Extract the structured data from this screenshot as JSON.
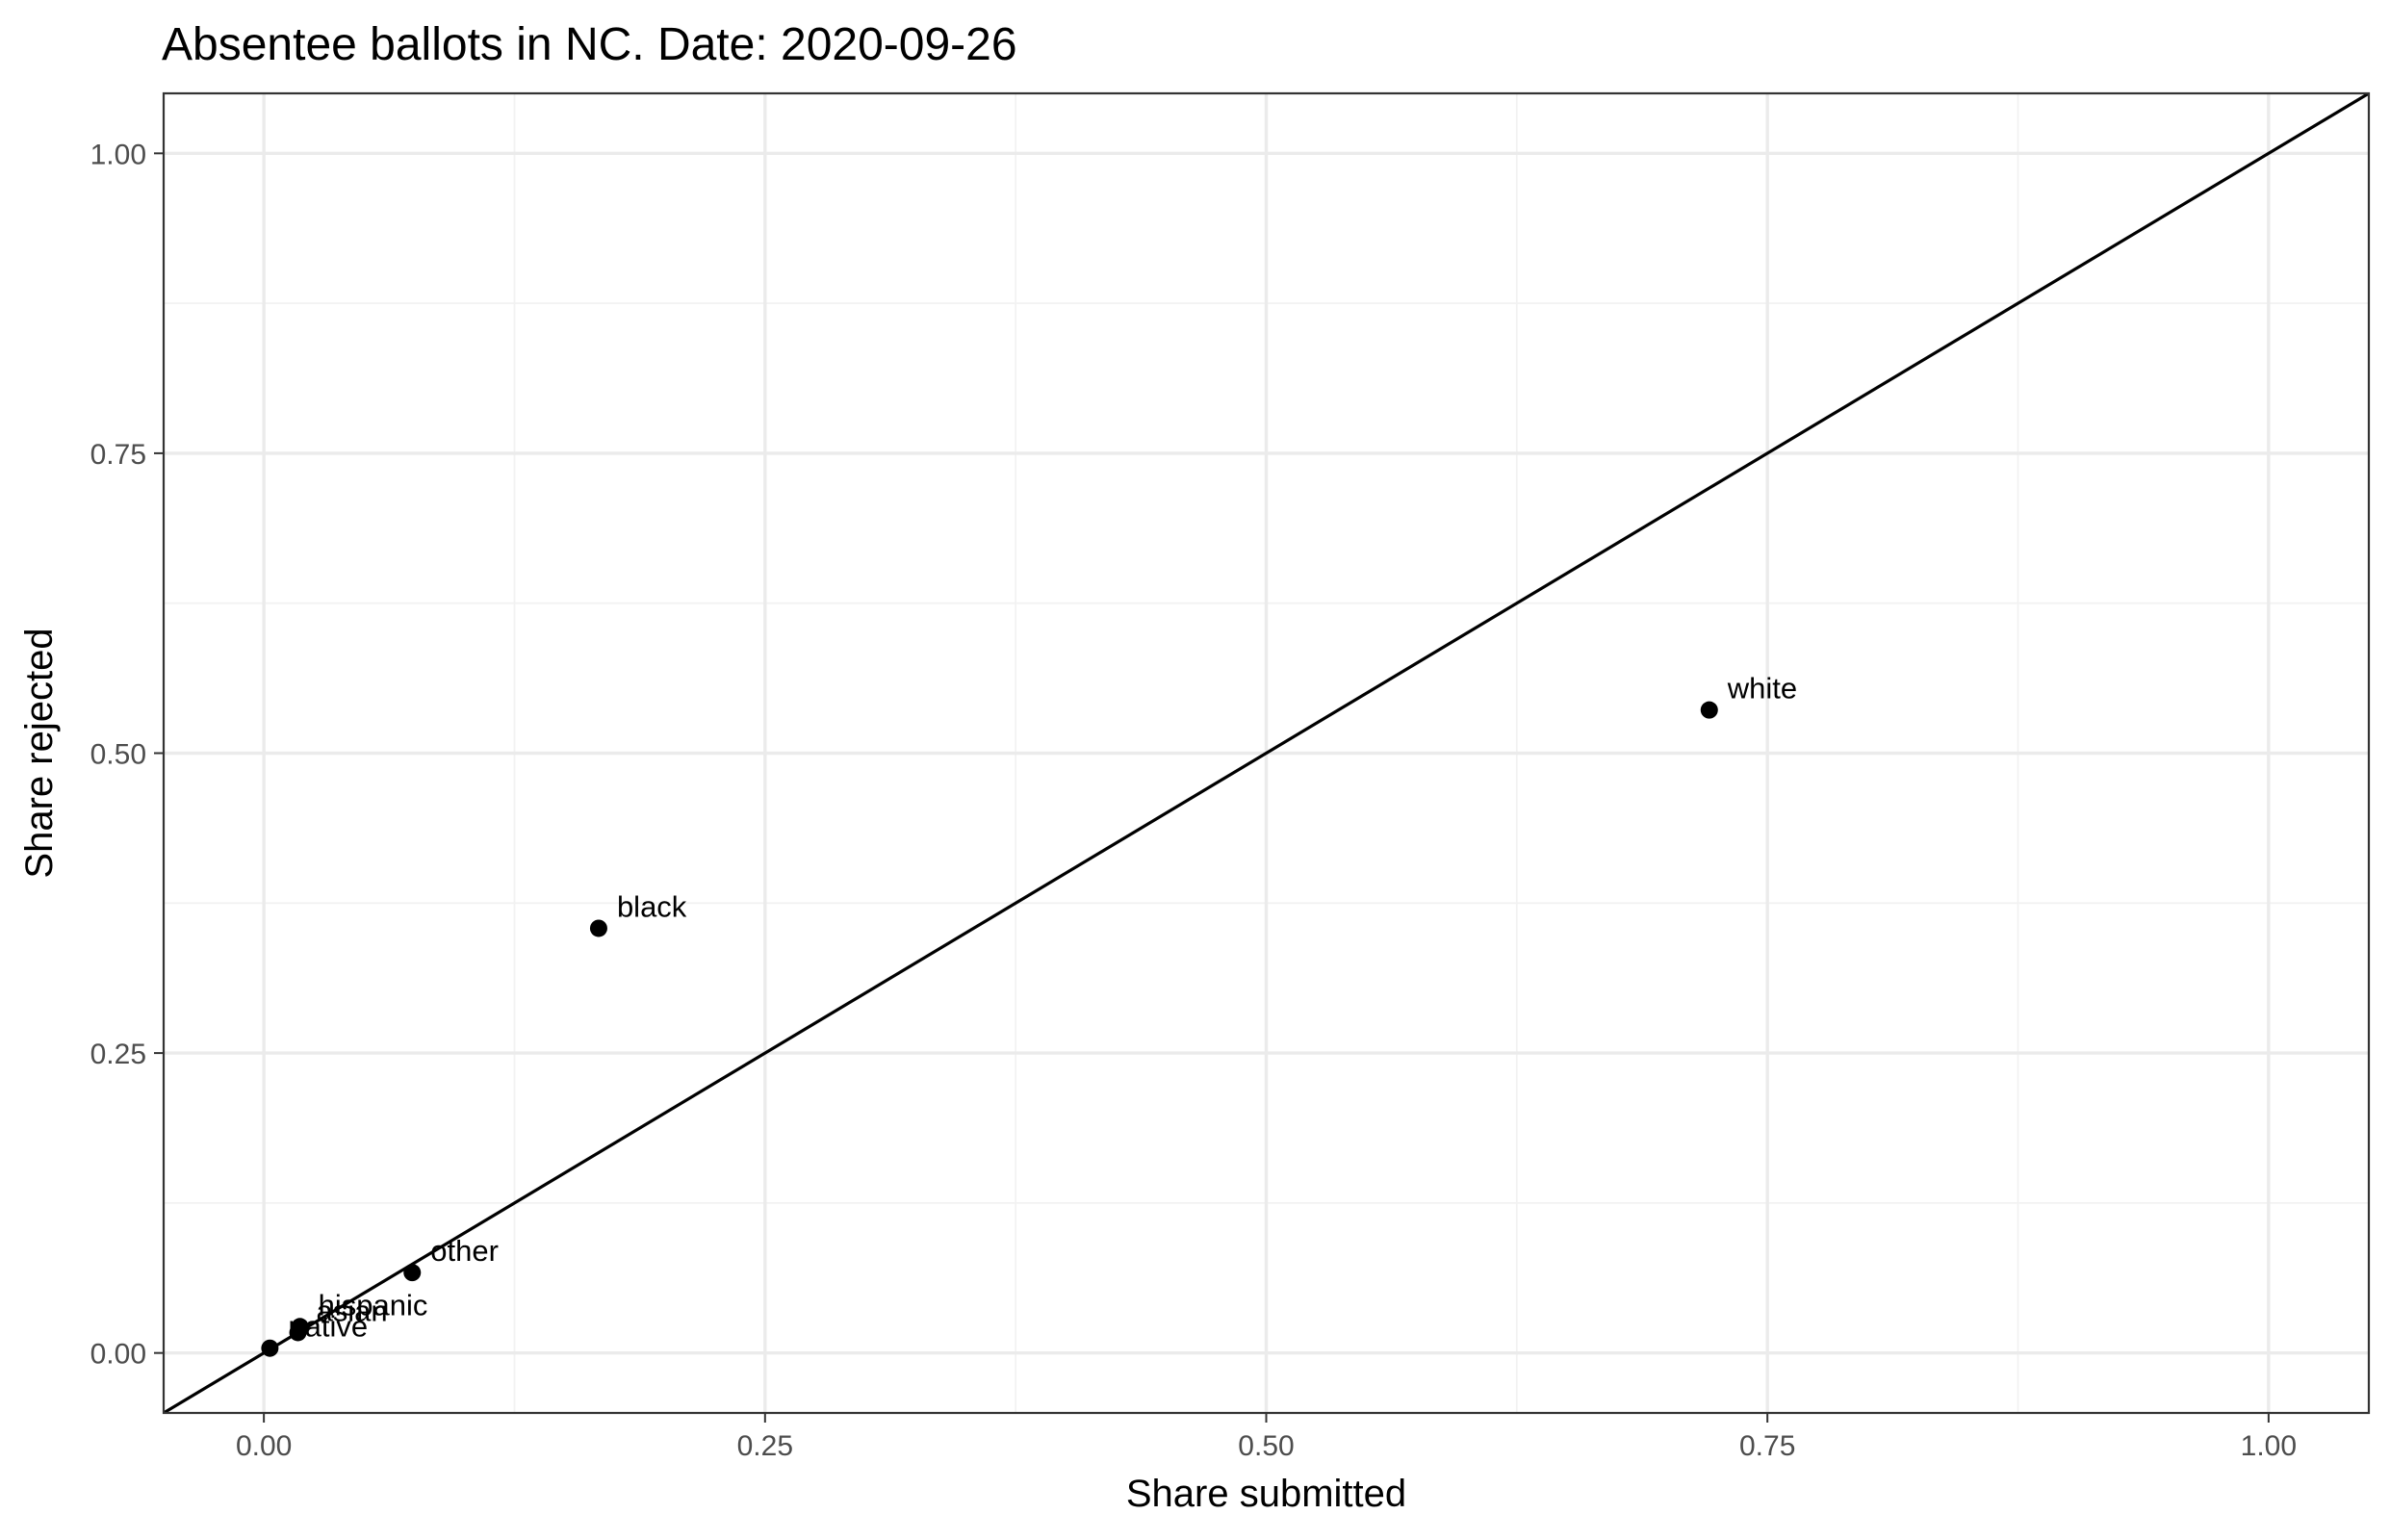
{
  "chart_data": {
    "type": "scatter",
    "title": "Absentee ballots in NC. Date: 2020-09-26",
    "xlabel": "Share submitted",
    "ylabel": "Share rejected",
    "xlim": [
      -0.05,
      1.05
    ],
    "ylim": [
      -0.05,
      1.05
    ],
    "x_ticks": [
      0.0,
      0.25,
      0.5,
      0.75,
      1.0
    ],
    "x_tick_labels": [
      "0.00",
      "0.25",
      "0.50",
      "0.75",
      "1.00"
    ],
    "y_ticks": [
      0.0,
      0.25,
      0.5,
      0.75,
      1.0
    ],
    "y_tick_labels": [
      "0.00",
      "0.25",
      "0.50",
      "0.75",
      "1.00"
    ],
    "grid": true,
    "reference_line": {
      "slope": 1,
      "intercept": 0
    },
    "points": [
      {
        "label": "white",
        "x": 0.721,
        "y": 0.536
      },
      {
        "label": "black",
        "x": 0.167,
        "y": 0.354
      },
      {
        "label": "other",
        "x": 0.074,
        "y": 0.067
      },
      {
        "label": "hispanic",
        "x": 0.018,
        "y": 0.022
      },
      {
        "label": "asian",
        "x": 0.017,
        "y": 0.017
      },
      {
        "label": "native",
        "x": 0.003,
        "y": 0.004
      }
    ],
    "colors": {
      "background": "#ffffff",
      "major_grid": "#ebebeb",
      "minor_grid": "#f2f2f2",
      "border": "#333333",
      "points": "#000000",
      "reference_line": "#000000"
    }
  }
}
